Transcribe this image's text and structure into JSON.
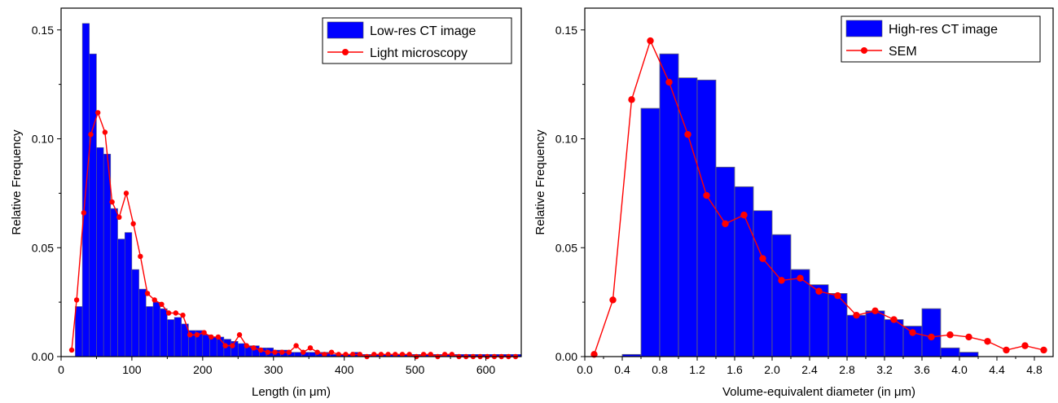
{
  "chart_data": [
    {
      "type": "bar",
      "xlabel": "Length (in μm)",
      "ylabel": "Relative Frequency",
      "xlim": [
        0,
        650
      ],
      "ylim": [
        0,
        0.16
      ],
      "xticks": [
        0,
        100,
        200,
        300,
        400,
        500,
        600
      ],
      "xtick_labels": [
        "0",
        "100",
        "200",
        "300",
        "400",
        "500",
        "600"
      ],
      "yticks": [
        0,
        0.05,
        0.1,
        0.15
      ],
      "ytick_labels": [
        "0.00",
        "0.05",
        "0.10",
        "0.15"
      ],
      "grid": false,
      "legend_position": "top-right",
      "colors": {
        "bars": "#0000ff",
        "line": "#ff0000"
      },
      "bar_series": {
        "name": "Low-res CT image",
        "bin_width": 10,
        "x_start": [
          20,
          30,
          40,
          50,
          60,
          70,
          80,
          90,
          100,
          110,
          120,
          130,
          140,
          150,
          160,
          170,
          180,
          190,
          200,
          210,
          220,
          230,
          240,
          250,
          260,
          270,
          280,
          290,
          300,
          310,
          320,
          330,
          340,
          350,
          360,
          370,
          380,
          390,
          400,
          410,
          420,
          430,
          440,
          450,
          460,
          470,
          480,
          490,
          500,
          510,
          520,
          530,
          540,
          550,
          560,
          570,
          580,
          590,
          600,
          610,
          620,
          630,
          640
        ],
        "values": [
          0.023,
          0.153,
          0.139,
          0.096,
          0.093,
          0.068,
          0.054,
          0.057,
          0.04,
          0.031,
          0.023,
          0.025,
          0.022,
          0.017,
          0.018,
          0.015,
          0.012,
          0.012,
          0.01,
          0.009,
          0.009,
          0.008,
          0.007,
          0.006,
          0.005,
          0.005,
          0.004,
          0.004,
          0.003,
          0.003,
          0.002,
          0.002,
          0.002,
          0.002,
          0.002,
          0.002,
          0.001,
          0.001,
          0.001,
          0.002,
          0.001,
          0.001,
          0.001,
          0.001,
          0.001,
          0.001,
          0.001,
          0.001,
          0.001,
          0.001,
          0.001,
          0.001,
          0.001,
          0.001,
          0.001,
          0.001,
          0.001,
          0.001,
          0.001,
          0.001,
          0.001,
          0.001,
          0.001
        ]
      },
      "line_series": {
        "name": "Light microscopy",
        "x": [
          15,
          22,
          32,
          42,
          52,
          62,
          72,
          82,
          92,
          102,
          112,
          122,
          132,
          142,
          152,
          162,
          172,
          182,
          192,
          202,
          212,
          222,
          232,
          242,
          252,
          262,
          272,
          282,
          292,
          302,
          312,
          322,
          332,
          342,
          352,
          362,
          372,
          382,
          392,
          402,
          412,
          422,
          432,
          442,
          452,
          462,
          472,
          482,
          492,
          502,
          512,
          522,
          532,
          542,
          552,
          562,
          572,
          582,
          592,
          602,
          612,
          622,
          632,
          642
        ],
        "values": [
          0.003,
          0.026,
          0.066,
          0.102,
          0.112,
          0.103,
          0.071,
          0.064,
          0.075,
          0.061,
          0.046,
          0.029,
          0.026,
          0.024,
          0.02,
          0.02,
          0.019,
          0.01,
          0.01,
          0.011,
          0.009,
          0.009,
          0.005,
          0.005,
          0.01,
          0.005,
          0.004,
          0.003,
          0.002,
          0.002,
          0.002,
          0.002,
          0.005,
          0.002,
          0.004,
          0.002,
          0.001,
          0.002,
          0.001,
          0.001,
          0.001,
          0.001,
          0.0,
          0.001,
          0.001,
          0.001,
          0.001,
          0.001,
          0.001,
          0.0,
          0.001,
          0.001,
          0.0,
          0.001,
          0.001,
          0.0,
          0.0,
          0.0,
          0.0,
          0.0,
          0.0,
          0.0,
          0.0,
          0.0
        ]
      }
    },
    {
      "type": "bar",
      "xlabel": "Volume-equivalent diameter (in μm)",
      "ylabel": "Relative Frequency",
      "xlim": [
        0,
        5.0
      ],
      "ylim": [
        0,
        0.16
      ],
      "xticks": [
        0,
        0.4,
        0.8,
        1.2,
        1.6,
        2.0,
        2.4,
        2.8,
        3.2,
        3.6,
        4.0,
        4.4,
        4.8
      ],
      "xtick_labels": [
        "0.0",
        "0.4",
        "0.8",
        "1.2",
        "1.6",
        "2.0",
        "2.4",
        "2.8",
        "3.2",
        "3.6",
        "4.0",
        "4.4",
        "4.8"
      ],
      "yticks": [
        0,
        0.05,
        0.1,
        0.15
      ],
      "ytick_labels": [
        "0.00",
        "0.05",
        "0.10",
        "0.15"
      ],
      "grid": false,
      "legend_position": "top-right",
      "colors": {
        "bars": "#0000ff",
        "line": "#ff0000"
      },
      "bar_series": {
        "name": "High-res CT image",
        "bin_width": 0.2,
        "x_start": [
          0.4,
          0.6,
          0.8,
          1.0,
          1.2,
          1.4,
          1.6,
          1.8,
          2.0,
          2.2,
          2.4,
          2.6,
          2.8,
          3.0,
          3.2,
          3.4,
          3.6,
          3.8,
          4.0
        ],
        "values": [
          0.001,
          0.114,
          0.139,
          0.128,
          0.127,
          0.087,
          0.078,
          0.067,
          0.056,
          0.04,
          0.033,
          0.029,
          0.019,
          0.021,
          0.017,
          0.014,
          0.022,
          0.004,
          0.002
        ]
      },
      "line_series": {
        "name": "SEM",
        "x": [
          0.1,
          0.3,
          0.5,
          0.7,
          0.9,
          1.1,
          1.3,
          1.5,
          1.7,
          1.9,
          2.1,
          2.3,
          2.5,
          2.7,
          2.9,
          3.1,
          3.3,
          3.5,
          3.7,
          3.9,
          4.1,
          4.3,
          4.5,
          4.7,
          4.9
        ],
        "values": [
          0.001,
          0.026,
          0.118,
          0.145,
          0.126,
          0.102,
          0.074,
          0.061,
          0.065,
          0.045,
          0.035,
          0.036,
          0.03,
          0.028,
          0.019,
          0.021,
          0.017,
          0.011,
          0.009,
          0.01,
          0.009,
          0.007,
          0.003,
          0.005,
          0.003
        ]
      }
    }
  ]
}
